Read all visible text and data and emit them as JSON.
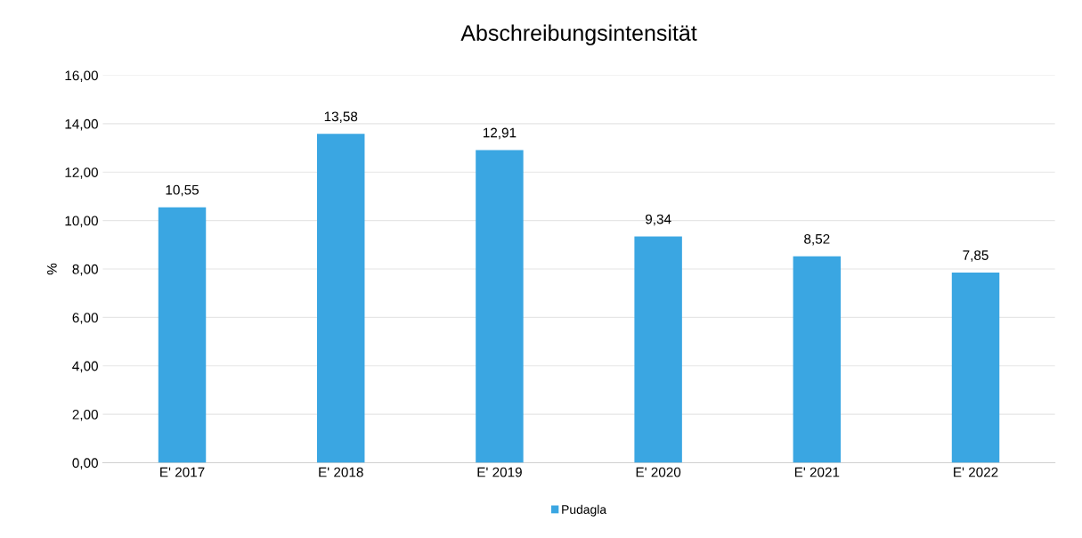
{
  "chart_data": {
    "type": "bar",
    "title": "Abschreibungsintensität",
    "ylabel": "%",
    "categories": [
      "E' 2017",
      "E' 2018",
      "E' 2019",
      "E' 2020",
      "E' 2021",
      "E' 2022"
    ],
    "series": [
      {
        "name": "Pudagla",
        "color": "#3aa6e2",
        "values": [
          10.55,
          13.58,
          12.91,
          9.34,
          8.52,
          7.85
        ],
        "value_labels": [
          "10,55",
          "13,58",
          "12,91",
          "9,34",
          "8,52",
          "7,85"
        ]
      }
    ],
    "ylim": [
      0,
      16
    ],
    "yticks": [
      {
        "value": 0,
        "label": "0,00"
      },
      {
        "value": 2,
        "label": "2,00"
      },
      {
        "value": 4,
        "label": "4,00"
      },
      {
        "value": 6,
        "label": "6,00"
      },
      {
        "value": 8,
        "label": "8,00"
      },
      {
        "value": 10,
        "label": "10,00"
      },
      {
        "value": 12,
        "label": "12,00"
      },
      {
        "value": 14,
        "label": "14,00"
      },
      {
        "value": 16,
        "label": "16,00"
      }
    ],
    "grid": "y",
    "legend": "bottom"
  }
}
